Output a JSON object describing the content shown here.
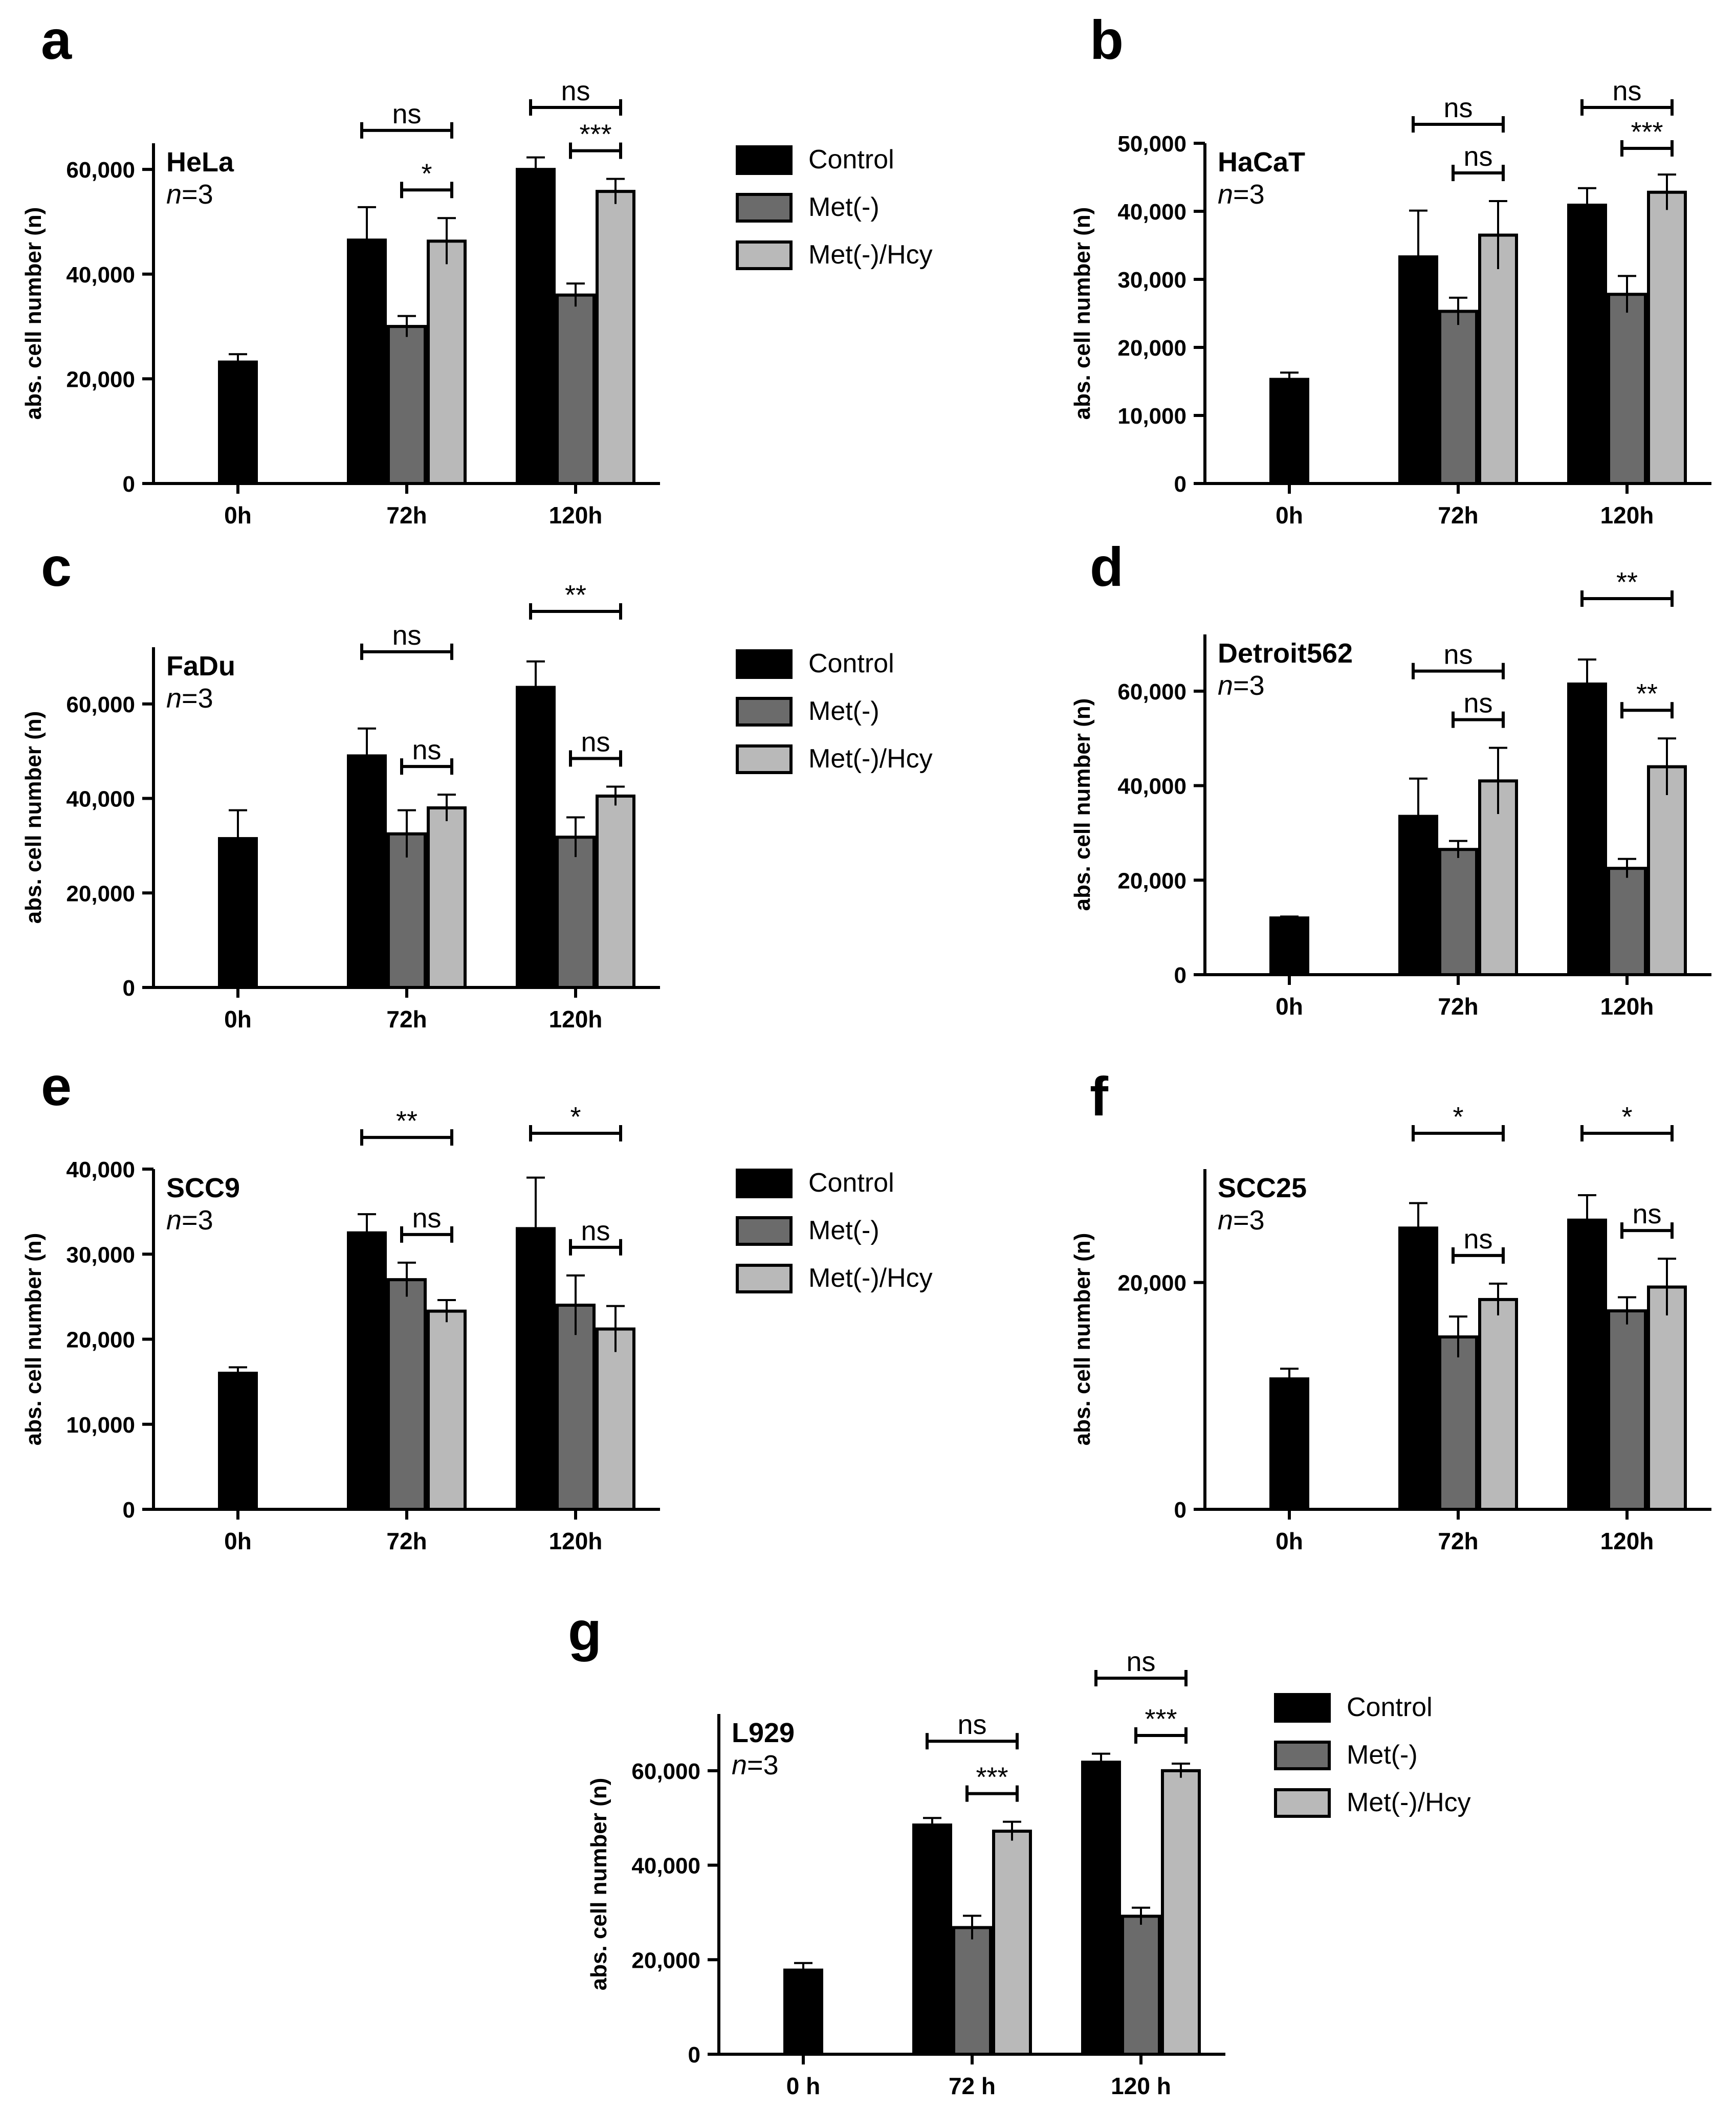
{
  "colors": {
    "control": "#000000",
    "met_minus": "#6b6b6b",
    "met_hcy": "#b9b9b9"
  },
  "legend": [
    "Control",
    "Met(-)",
    "Met(-)/Hcy"
  ],
  "chart_data": [
    {
      "type": "bar",
      "panel": "a",
      "cell_line": "HeLa",
      "n_label": "n=3",
      "categories": [
        "0h",
        "72h",
        "120h"
      ],
      "ylabel": "abs. cell number (n)",
      "ylim": [
        0,
        65000
      ],
      "yticks": [
        0,
        20000,
        40000,
        60000
      ],
      "ytick_labels": [
        "0",
        "20,000",
        "40,000",
        "60,000"
      ],
      "series": [
        {
          "name": "Control",
          "values": [
            23200,
            46500,
            60000
          ],
          "errors": [
            1500,
            6300,
            2300
          ]
        },
        {
          "name": "Met(-)",
          "values": [
            null,
            30000,
            36000
          ],
          "errors": [
            null,
            2000,
            2200
          ]
        },
        {
          "name": "Met(-)/Hcy",
          "values": [
            null,
            46300,
            55800
          ],
          "errors": [
            null,
            4400,
            2400
          ]
        }
      ],
      "annotations": [
        {
          "text": "ns",
          "category": 1,
          "from": 0,
          "to": 2,
          "level": 0
        },
        {
          "text": "*",
          "category": 1,
          "from": 1,
          "to": 2,
          "level": 1
        },
        {
          "text": "ns",
          "category": 2,
          "from": 0,
          "to": 2,
          "level": 0
        },
        {
          "text": "***",
          "category": 2,
          "from": 1,
          "to": 2,
          "level": 1
        }
      ]
    },
    {
      "type": "bar",
      "panel": "b",
      "cell_line": "HaCaT",
      "n_label": "n=3",
      "categories": [
        "0h",
        "72h",
        "120h"
      ],
      "ylabel": "abs. cell number (n)",
      "ylim": [
        0,
        50000
      ],
      "yticks": [
        0,
        10000,
        20000,
        30000,
        40000,
        50000
      ],
      "ytick_labels": [
        "0",
        "10,000",
        "20,000",
        "30,000",
        "40,000",
        "50,000"
      ],
      "series": [
        {
          "name": "Control",
          "values": [
            15300,
            33300,
            40900
          ],
          "errors": [
            1000,
            6800,
            2500
          ]
        },
        {
          "name": "Met(-)",
          "values": [
            null,
            25300,
            27800
          ],
          "errors": [
            null,
            2000,
            2700
          ]
        },
        {
          "name": "Met(-)/Hcy",
          "values": [
            null,
            36500,
            42800
          ],
          "errors": [
            null,
            5000,
            2600
          ]
        }
      ],
      "annotations": [
        {
          "text": "ns",
          "category": 1,
          "from": 0,
          "to": 2,
          "level": 0
        },
        {
          "text": "ns",
          "category": 1,
          "from": 1,
          "to": 2,
          "level": 1
        },
        {
          "text": "ns",
          "category": 2,
          "from": 0,
          "to": 2,
          "level": 0
        },
        {
          "text": "***",
          "category": 2,
          "from": 1,
          "to": 2,
          "level": 1
        }
      ]
    },
    {
      "type": "bar",
      "panel": "c",
      "cell_line": "FaDu",
      "n_label": "n=3",
      "categories": [
        "0h",
        "72h",
        "120h"
      ],
      "ylabel": "abs. cell number (n)",
      "ylim": [
        0,
        72000
      ],
      "yticks": [
        0,
        20000,
        40000,
        60000
      ],
      "ytick_labels": [
        "0",
        "20,000",
        "40,000",
        "60,000"
      ],
      "series": [
        {
          "name": "Control",
          "values": [
            31500,
            49000,
            63500
          ],
          "errors": [
            6000,
            5800,
            5500
          ]
        },
        {
          "name": "Met(-)",
          "values": [
            null,
            32500,
            31800
          ],
          "errors": [
            null,
            5000,
            4200
          ]
        },
        {
          "name": "Met(-)/Hcy",
          "values": [
            null,
            38000,
            40500
          ],
          "errors": [
            null,
            2800,
            2000
          ]
        }
      ],
      "annotations": [
        {
          "text": "ns",
          "category": 1,
          "from": 0,
          "to": 2,
          "level": 0
        },
        {
          "text": "ns",
          "category": 1,
          "from": 1,
          "to": 2,
          "level": 1
        },
        {
          "text": "**",
          "category": 2,
          "from": 0,
          "to": 2,
          "level": 0
        },
        {
          "text": "ns",
          "category": 2,
          "from": 1,
          "to": 2,
          "level": 1
        }
      ]
    },
    {
      "type": "bar",
      "panel": "d",
      "cell_line": "Detroit562",
      "n_label": "n=3",
      "categories": [
        "0h",
        "72h",
        "120h"
      ],
      "ylabel": "abs. cell number (n)",
      "ylim": [
        0,
        72000
      ],
      "yticks": [
        0,
        20000,
        40000,
        60000
      ],
      "ytick_labels": [
        "0",
        "20,000",
        "40,000",
        "60,000"
      ],
      "series": [
        {
          "name": "Control",
          "values": [
            12000,
            33500,
            61500
          ],
          "errors": [
            300,
            8000,
            5200
          ]
        },
        {
          "name": "Met(-)",
          "values": [
            null,
            26500,
            22500
          ],
          "errors": [
            null,
            1800,
            2000
          ]
        },
        {
          "name": "Met(-)/Hcy",
          "values": [
            null,
            41000,
            44000
          ],
          "errors": [
            null,
            7000,
            6000
          ]
        }
      ],
      "annotations": [
        {
          "text": "ns",
          "category": 1,
          "from": 0,
          "to": 2,
          "level": 0
        },
        {
          "text": "ns",
          "category": 1,
          "from": 1,
          "to": 2,
          "level": 1
        },
        {
          "text": "**",
          "category": 2,
          "from": 0,
          "to": 2,
          "level": 0
        },
        {
          "text": "**",
          "category": 2,
          "from": 1,
          "to": 2,
          "level": 1
        }
      ]
    },
    {
      "type": "bar",
      "panel": "e",
      "cell_line": "SCC9",
      "n_label": "n=3",
      "categories": [
        "0h",
        "72h",
        "120h"
      ],
      "ylabel": "abs. cell number (n)",
      "ylim": [
        0,
        40000
      ],
      "yticks": [
        0,
        10000,
        20000,
        30000,
        40000
      ],
      "ytick_labels": [
        "0",
        "10,000",
        "20,000",
        "30,000",
        "40,000"
      ],
      "series": [
        {
          "name": "Control",
          "values": [
            16000,
            32500,
            33000
          ],
          "errors": [
            700,
            2200,
            6000
          ]
        },
        {
          "name": "Met(-)",
          "values": [
            null,
            27000,
            24000
          ],
          "errors": [
            null,
            2000,
            3500
          ]
        },
        {
          "name": "Met(-)/Hcy",
          "values": [
            null,
            23300,
            21200
          ],
          "errors": [
            null,
            1300,
            2700
          ]
        }
      ],
      "annotations": [
        {
          "text": "**",
          "category": 1,
          "from": 0,
          "to": 2,
          "level": 0
        },
        {
          "text": "ns",
          "category": 1,
          "from": 1,
          "to": 2,
          "level": 1
        },
        {
          "text": "*",
          "category": 2,
          "from": 0,
          "to": 2,
          "level": 0
        },
        {
          "text": "ns",
          "category": 2,
          "from": 1,
          "to": 2,
          "level": 1
        }
      ]
    },
    {
      "type": "bar",
      "panel": "f",
      "cell_line": "SCC25",
      "n_label": "n=3",
      "categories": [
        "0h",
        "72h",
        "120h"
      ],
      "ylabel": "abs. cell number (n)",
      "ylim": [
        0,
        30000
      ],
      "yticks": [
        0,
        20000
      ],
      "ytick_labels": [
        "0",
        "20,000"
      ],
      "series": [
        {
          "name": "Control",
          "values": [
            11500,
            24800,
            25500
          ],
          "errors": [
            900,
            2200,
            2200
          ]
        },
        {
          "name": "Met(-)",
          "values": [
            null,
            15200,
            17500
          ],
          "errors": [
            null,
            1800,
            1200
          ]
        },
        {
          "name": "Met(-)/Hcy",
          "values": [
            null,
            18500,
            19600
          ],
          "errors": [
            null,
            1400,
            2500
          ]
        }
      ],
      "annotations": [
        {
          "text": "*",
          "category": 1,
          "from": 0,
          "to": 2,
          "level": 0
        },
        {
          "text": "ns",
          "category": 1,
          "from": 1,
          "to": 2,
          "level": 1
        },
        {
          "text": "*",
          "category": 2,
          "from": 0,
          "to": 2,
          "level": 0
        },
        {
          "text": "ns",
          "category": 2,
          "from": 1,
          "to": 2,
          "level": 1
        }
      ]
    },
    {
      "type": "bar",
      "panel": "g",
      "cell_line": "L929",
      "n_label": "n=3",
      "categories": [
        "0 h",
        "72 h",
        "120 h"
      ],
      "ylabel": "abs. cell number (n)",
      "ylim": [
        0,
        72000
      ],
      "yticks": [
        0,
        20000,
        40000,
        60000
      ],
      "ytick_labels": [
        "0",
        "20,000",
        "40,000",
        "60,000"
      ],
      "series": [
        {
          "name": "Control",
          "values": [
            17800,
            48500,
            61800
          ],
          "errors": [
            1500,
            1500,
            1800
          ]
        },
        {
          "name": "Met(-)",
          "values": [
            null,
            26800,
            29200
          ],
          "errors": [
            null,
            2500,
            1800
          ]
        },
        {
          "name": "Met(-)/Hcy",
          "values": [
            null,
            47200,
            60000
          ],
          "errors": [
            null,
            2000,
            1500
          ]
        }
      ],
      "annotations": [
        {
          "text": "ns",
          "category": 1,
          "from": 0,
          "to": 2,
          "level": 0
        },
        {
          "text": "***",
          "category": 1,
          "from": 1,
          "to": 2,
          "level": 1
        },
        {
          "text": "ns",
          "category": 2,
          "from": 0,
          "to": 2,
          "level": 0
        },
        {
          "text": "***",
          "category": 2,
          "from": 1,
          "to": 2,
          "level": 1
        }
      ]
    }
  ]
}
